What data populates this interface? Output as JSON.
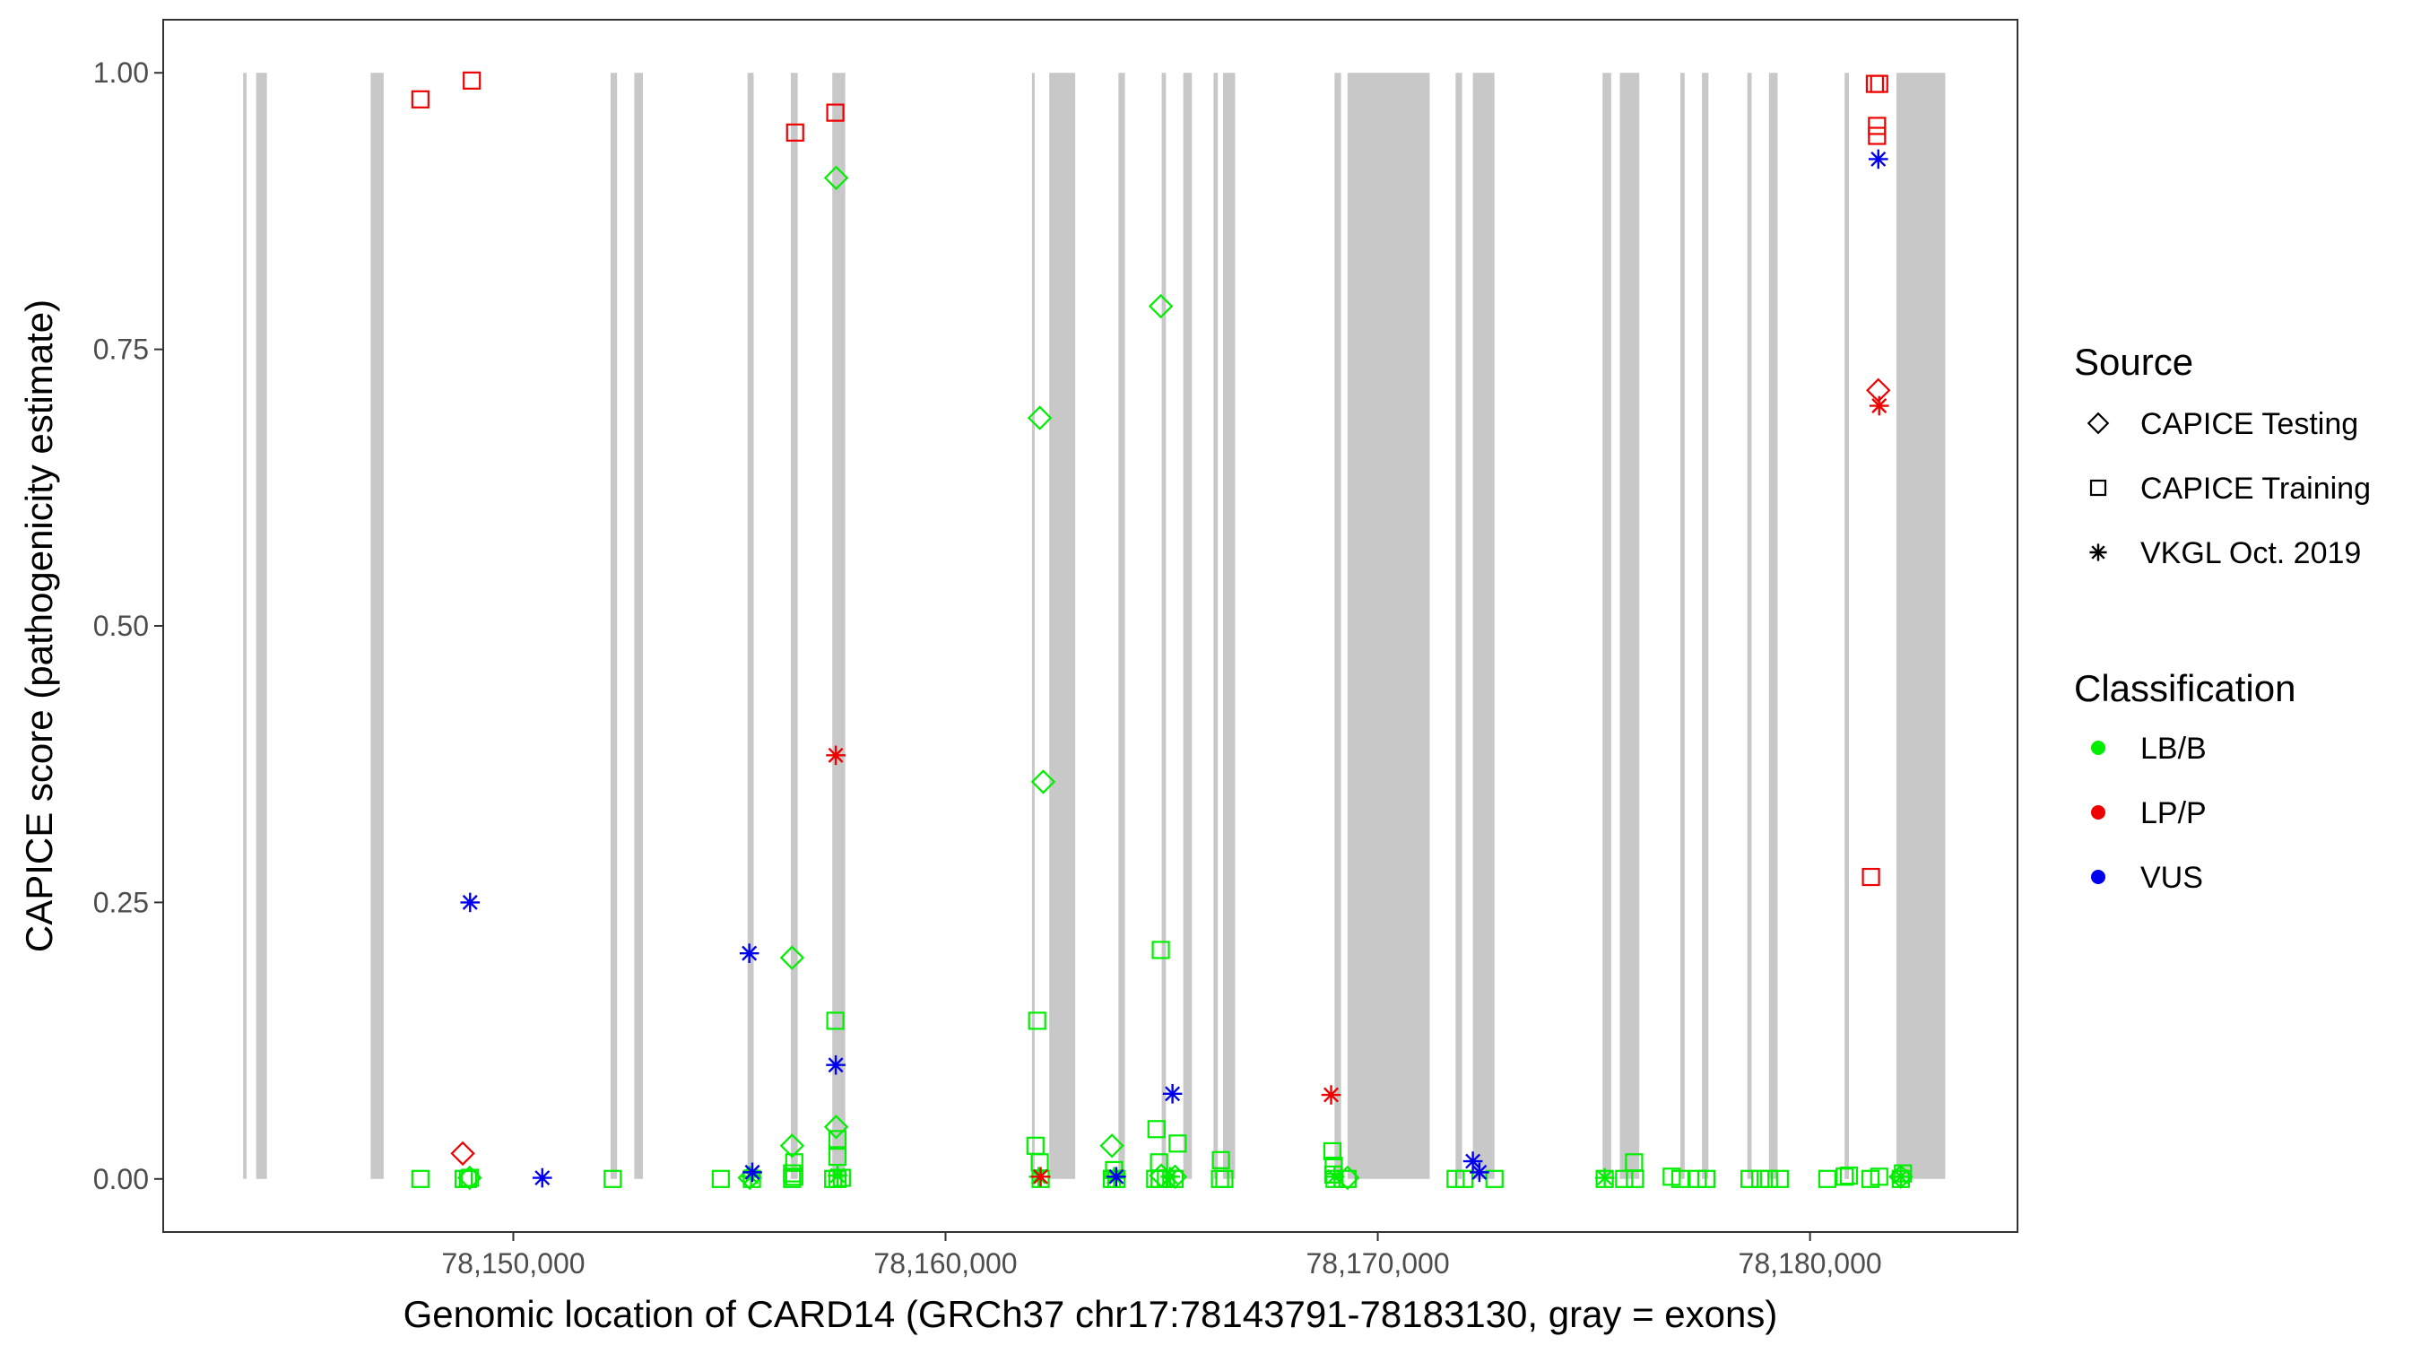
{
  "chart_data": {
    "type": "scatter",
    "title": "",
    "xlabel": "Genomic location of CARD14 (GRCh37 chr17:78143791-78183130, gray = exons)",
    "ylabel": "CAPICE score (pathogenicity estimate)",
    "xlim": [
      78141900,
      78184800
    ],
    "ylim": [
      -0.048,
      1.048
    ],
    "x_ticks": [
      78150000,
      78160000,
      78170000,
      78180000
    ],
    "x_tick_labels": [
      "78,150,000",
      "78,160,000",
      "78,170,000",
      "78,180,000"
    ],
    "y_ticks": [
      0,
      0.25,
      0.5,
      0.75,
      1.0
    ],
    "y_tick_labels": [
      "0.00",
      "0.25",
      "0.50",
      "0.75",
      "1.00"
    ],
    "grid": false,
    "exon_color": "#c8c8c8",
    "exons": [
      [
        78143750,
        78143830
      ],
      [
        78144050,
        78144300
      ],
      [
        78146700,
        78147000
      ],
      [
        78152250,
        78152400
      ],
      [
        78152800,
        78153000
      ],
      [
        78155420,
        78155560
      ],
      [
        78156420,
        78156580
      ],
      [
        78157380,
        78157680
      ],
      [
        78162000,
        78162050
      ],
      [
        78162400,
        78163000
      ],
      [
        78164000,
        78164150
      ],
      [
        78165000,
        78165100
      ],
      [
        78165500,
        78165700
      ],
      [
        78166200,
        78166300
      ],
      [
        78166420,
        78166700
      ],
      [
        78169000,
        78169150
      ],
      [
        78169300,
        78171200
      ],
      [
        78171800,
        78171950
      ],
      [
        78172200,
        78172700
      ],
      [
        78175200,
        78175400
      ],
      [
        78175600,
        78176050
      ],
      [
        78177000,
        78177100
      ],
      [
        78177500,
        78177650
      ],
      [
        78178550,
        78178650
      ],
      [
        78179050,
        78179250
      ],
      [
        78180800,
        78180900
      ],
      [
        78182000,
        78183130
      ]
    ],
    "legend_position": "right",
    "legend": {
      "source_title": "Source",
      "source_items": [
        {
          "label": "CAPICE Testing",
          "shape": "diamond"
        },
        {
          "label": "CAPICE Training",
          "shape": "square"
        },
        {
          "label": "VKGL Oct. 2019",
          "shape": "asterisk"
        }
      ],
      "class_title": "Classification",
      "class_items": [
        {
          "label": "LB/B",
          "color": "#00ee00"
        },
        {
          "label": "LP/P",
          "color": "#ee0000"
        },
        {
          "label": "VUS",
          "color": "#0000ee"
        }
      ]
    },
    "series": [
      {
        "source": "CAPICE Testing",
        "classification": "LB/B",
        "points": [
          [
            78157470,
            0.905
          ],
          [
            78164980,
            0.789
          ],
          [
            78162180,
            0.688
          ],
          [
            78162260,
            0.359
          ],
          [
            78156450,
            0.2
          ],
          [
            78156450,
            0.03
          ],
          [
            78157470,
            0.047
          ],
          [
            78163850,
            0.03
          ],
          [
            78148990,
            0.001
          ],
          [
            78155470,
            0.001
          ],
          [
            78164990,
            0.003
          ],
          [
            78165310,
            0.002
          ],
          [
            78169300,
            0.001
          ],
          [
            78182100,
            0.002
          ]
        ]
      },
      {
        "source": "CAPICE Testing",
        "classification": "LP/P",
        "points": [
          [
            78148830,
            0.023
          ],
          [
            78181580,
            0.713
          ]
        ]
      },
      {
        "source": "CAPICE Training",
        "classification": "LB/B",
        "points": [
          [
            78157450,
            0.143
          ],
          [
            78162120,
            0.143
          ],
          [
            78164980,
            0.207
          ],
          [
            78157500,
            0.036
          ],
          [
            78157500,
            0.02
          ],
          [
            78162080,
            0.03
          ],
          [
            78162180,
            0.015
          ],
          [
            78164880,
            0.045
          ],
          [
            78164940,
            0.015
          ],
          [
            78165370,
            0.032
          ],
          [
            78166370,
            0.017
          ],
          [
            78168950,
            0.025
          ],
          [
            78168980,
            0.012
          ],
          [
            78175930,
            0.015
          ],
          [
            78156500,
            0.015
          ],
          [
            78156450,
            0.005
          ],
          [
            78163900,
            0.008
          ],
          [
            78168970,
            0.004
          ],
          [
            78147850,
            0.0
          ],
          [
            78148850,
            0.0
          ],
          [
            78148950,
            0.0
          ],
          [
            78149000,
            0.001
          ],
          [
            78152300,
            0.0
          ],
          [
            78154800,
            0.0
          ],
          [
            78155520,
            0.0
          ],
          [
            78156450,
            0.0
          ],
          [
            78156500,
            0.002
          ],
          [
            78157400,
            0.0
          ],
          [
            78157500,
            0.0
          ],
          [
            78157600,
            0.001
          ],
          [
            78162200,
            0.0
          ],
          [
            78163850,
            0.0
          ],
          [
            78163950,
            0.0
          ],
          [
            78164850,
            0.0
          ],
          [
            78164950,
            0.0
          ],
          [
            78165100,
            0.0
          ],
          [
            78165300,
            0.0
          ],
          [
            78166350,
            0.0
          ],
          [
            78166450,
            0.0
          ],
          [
            78169000,
            0.0
          ],
          [
            78169300,
            0.0
          ],
          [
            78171800,
            0.0
          ],
          [
            78172000,
            0.0
          ],
          [
            78172700,
            0.0
          ],
          [
            78175250,
            0.0
          ],
          [
            78175700,
            0.0
          ],
          [
            78175950,
            0.0
          ],
          [
            78176800,
            0.002
          ],
          [
            78177000,
            0.0
          ],
          [
            78177400,
            0.0
          ],
          [
            78177600,
            0.0
          ],
          [
            78178600,
            0.0
          ],
          [
            78178850,
            0.0
          ],
          [
            78179050,
            0.0
          ],
          [
            78179300,
            0.0
          ],
          [
            78180400,
            0.0
          ],
          [
            78180800,
            0.002
          ],
          [
            78180900,
            0.003
          ],
          [
            78181400,
            0.0
          ],
          [
            78181600,
            0.002
          ],
          [
            78182100,
            0.0
          ],
          [
            78182150,
            0.005
          ]
        ]
      },
      {
        "source": "CAPICE Training",
        "classification": "LP/P",
        "points": [
          [
            78147850,
            0.976
          ],
          [
            78149040,
            0.993
          ],
          [
            78156520,
            0.946
          ],
          [
            78157450,
            0.964
          ],
          [
            78181410,
            0.273
          ],
          [
            78181500,
            0.99
          ],
          [
            78181600,
            0.99
          ],
          [
            78181550,
            0.952
          ],
          [
            78181550,
            0.943
          ]
        ]
      },
      {
        "source": "VKGL Oct. 2019",
        "classification": "LB/B",
        "points": [
          [
            78155500,
            0.002
          ],
          [
            78157500,
            0.003
          ],
          [
            78162150,
            0.002
          ],
          [
            78163900,
            0.002
          ],
          [
            78165200,
            0.002
          ],
          [
            78169000,
            0.002
          ],
          [
            78175250,
            0.001
          ],
          [
            78182100,
            0.002
          ]
        ]
      },
      {
        "source": "VKGL Oct. 2019",
        "classification": "LP/P",
        "points": [
          [
            78157460,
            0.383
          ],
          [
            78168920,
            0.076
          ],
          [
            78162200,
            0.002
          ],
          [
            78181600,
            0.699
          ]
        ]
      },
      {
        "source": "VKGL Oct. 2019",
        "classification": "VUS",
        "points": [
          [
            78149000,
            0.25
          ],
          [
            78150670,
            0.001
          ],
          [
            78155460,
            0.204
          ],
          [
            78155530,
            0.006
          ],
          [
            78157460,
            0.103
          ],
          [
            78163950,
            0.002
          ],
          [
            78165250,
            0.077
          ],
          [
            78172200,
            0.016
          ],
          [
            78172350,
            0.006
          ],
          [
            78181580,
            0.922
          ]
        ]
      }
    ]
  }
}
